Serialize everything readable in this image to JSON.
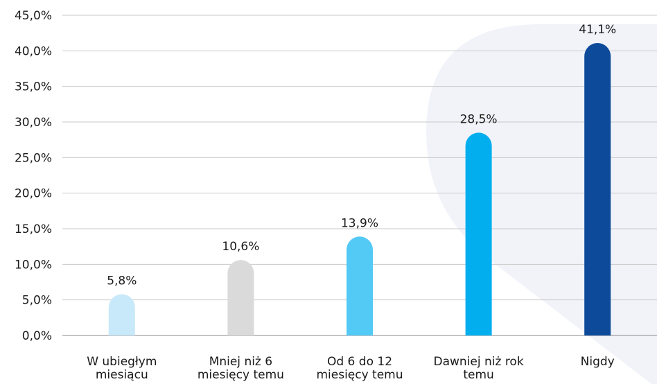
{
  "chart_data": {
    "type": "bar",
    "categories": [
      [
        "W ubiegłym",
        "miesiącu"
      ],
      [
        "Mniej niż 6",
        "miesięcy temu"
      ],
      [
        "Od 6 do 12",
        "miesięcy temu"
      ],
      [
        "Dawniej niż rok",
        "temu"
      ],
      [
        "Nigdy"
      ]
    ],
    "values": [
      5.8,
      10.6,
      13.9,
      28.5,
      41.1
    ],
    "value_labels": [
      "5,8%",
      "10,6%",
      "13,9%",
      "28,5%",
      "41,1%"
    ],
    "bar_colors": [
      "#c8e9f9",
      "#dadada",
      "#53c9f5",
      "#03aeee",
      "#0d4a9a"
    ],
    "ylim": [
      0,
      45
    ],
    "yticks": [
      0,
      5,
      10,
      15,
      20,
      25,
      30,
      35,
      40,
      45
    ],
    "ytick_labels": [
      "0,0%",
      "5,0%",
      "10,0%",
      "15,0%",
      "20,0%",
      "25,0%",
      "30,0%",
      "35,0%",
      "40,0%",
      "45,0%"
    ],
    "grid": true,
    "colors": {
      "grid": "#c9c9c9",
      "axis": "#8a8a8a",
      "background_shape": "#f1f3f9"
    }
  }
}
